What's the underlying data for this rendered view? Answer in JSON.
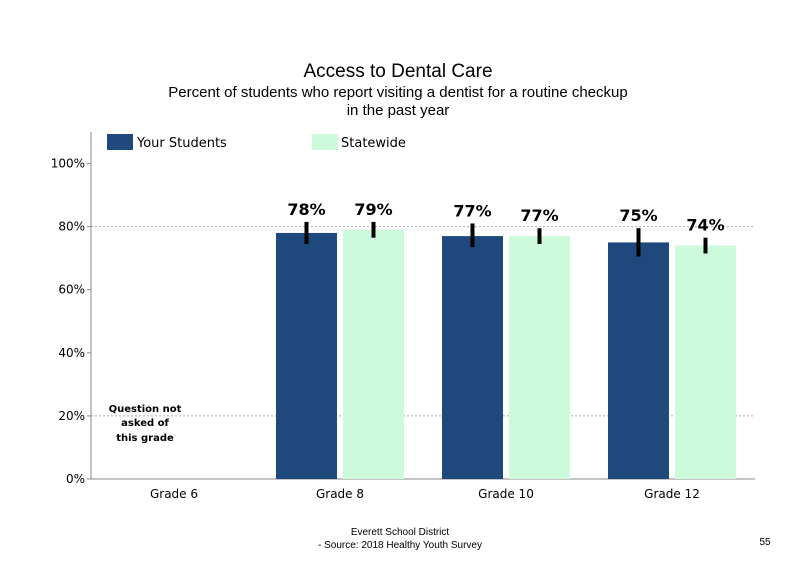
{
  "chart_data": {
    "type": "bar",
    "title": "Access to Dental Care",
    "subtitle_lines": [
      "Percent of students who report visiting a dentist for a routine checkup",
      "in the past year"
    ],
    "categories": [
      "Grade 6",
      "Grade 8",
      "Grade 10",
      "Grade 12"
    ],
    "series": [
      {
        "name": "Your Students",
        "color": "#1f497d",
        "values": [
          null,
          78,
          77,
          75
        ],
        "labels": [
          "",
          "78%",
          "77%",
          "75%"
        ],
        "error_low": [
          null,
          74.5,
          73.5,
          70.5
        ],
        "error_high": [
          null,
          81.5,
          81,
          79.5
        ]
      },
      {
        "name": "Statewide",
        "color": "#ccfadb",
        "values": [
          null,
          79,
          77,
          74
        ],
        "labels": [
          "",
          "79%",
          "77%",
          "74%"
        ],
        "error_low": [
          null,
          76.5,
          74.5,
          71.5
        ],
        "error_high": [
          null,
          81.5,
          79.5,
          76.5
        ]
      }
    ],
    "ylim": [
      0,
      110
    ],
    "yticks": [
      0,
      20,
      40,
      60,
      80,
      100
    ],
    "ytick_labels": [
      "0%",
      "20%",
      "40%",
      "60%",
      "80%",
      "100%"
    ],
    "gridline_values": [
      20,
      80
    ],
    "legend_position": "top-left",
    "note_lines": [
      "Question not",
      "asked of",
      "this grade"
    ]
  },
  "footer": {
    "lines": [
      "Everett School District",
      "- Source: 2018 Healthy  Youth Survey"
    ],
    "page_number": "55"
  }
}
